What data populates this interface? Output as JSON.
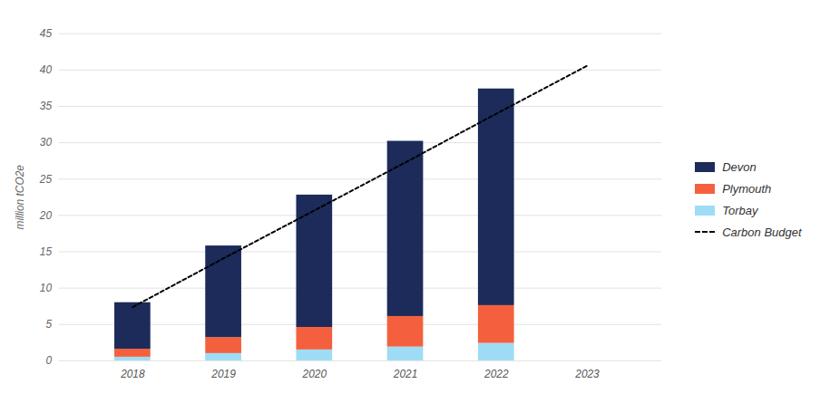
{
  "chart_data": {
    "type": "bar",
    "stacked": true,
    "categories": [
      "2018",
      "2019",
      "2020",
      "2021",
      "2022",
      "2023"
    ],
    "ylabel": "million tCO2e",
    "ylim": [
      0,
      45
    ],
    "yticks": [
      0,
      5,
      10,
      15,
      20,
      25,
      30,
      35,
      40,
      45
    ],
    "grid": true,
    "legend": "right",
    "series": [
      {
        "name": "Devon",
        "color": "#1c2b5a",
        "values": [
          6.4,
          12.6,
          18.2,
          24.1,
          29.8,
          null
        ]
      },
      {
        "name": "Plymouth",
        "color": "#f4603e",
        "values": [
          1.1,
          2.2,
          3.1,
          4.2,
          5.2,
          null
        ]
      },
      {
        "name": "Torbay",
        "color": "#9edcf5",
        "values": [
          0.5,
          1.0,
          1.5,
          1.9,
          2.4,
          null
        ]
      },
      {
        "name": "Carbon Budget",
        "type": "line",
        "line_style": "dashed",
        "color": "#000000",
        "values": [
          7.4,
          14.1,
          20.7,
          27.3,
          34.0,
          40.6
        ]
      }
    ]
  }
}
